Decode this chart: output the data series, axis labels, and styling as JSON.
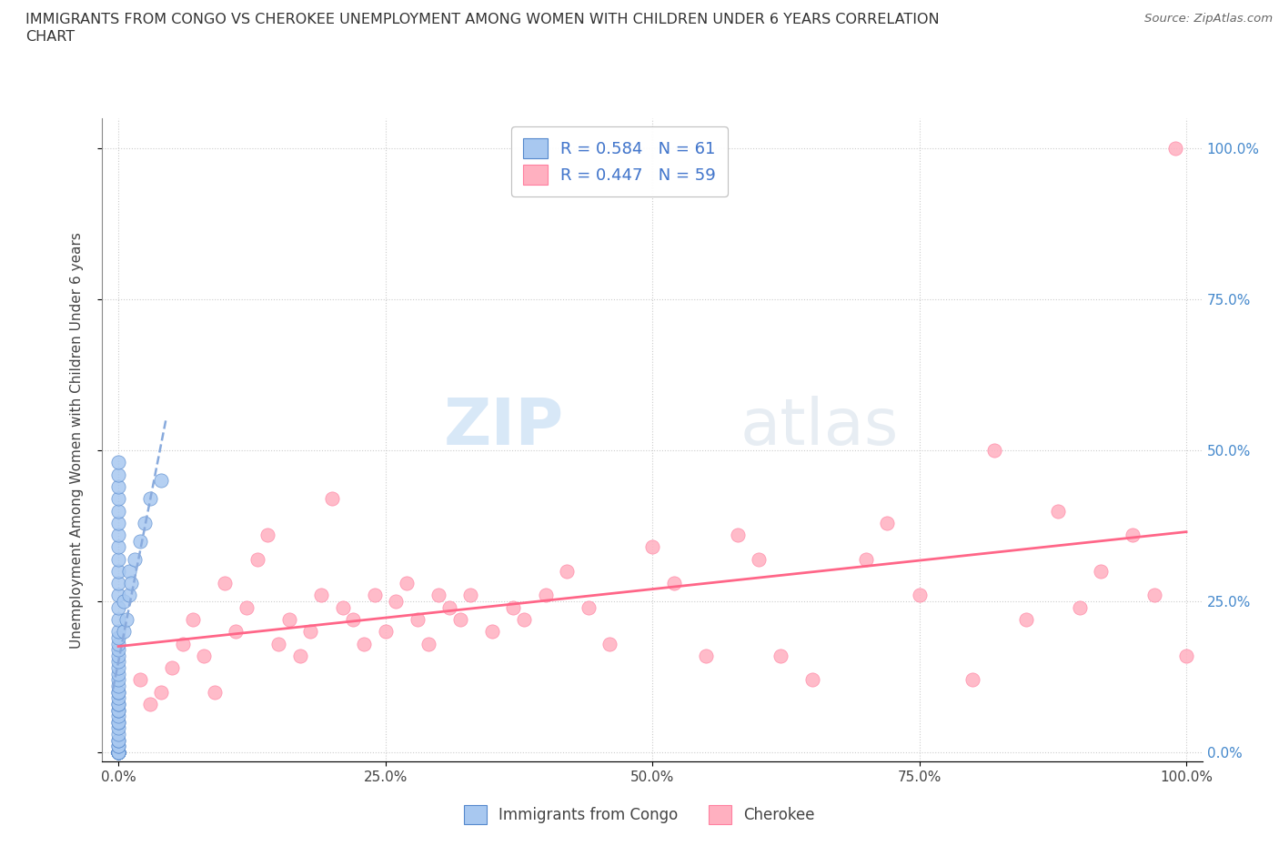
{
  "title_line1": "IMMIGRANTS FROM CONGO VS CHEROKEE UNEMPLOYMENT AMONG WOMEN WITH CHILDREN UNDER 6 YEARS CORRELATION",
  "title_line2": "CHART",
  "source": "Source: ZipAtlas.com",
  "ylabel": "Unemployment Among Women with Children Under 6 years",
  "color_blue_fill": "#A8C8F0",
  "color_blue_edge": "#5588CC",
  "color_blue_line": "#88AADD",
  "color_pink_fill": "#FFB0C0",
  "color_pink_edge": "#FF80A0",
  "color_pink_line": "#FF6688",
  "color_tick_right": "#4488CC",
  "watermark_zip": "ZIP",
  "watermark_atlas": "atlas",
  "background_color": "#FFFFFF",
  "grid_color": "#CCCCCC",
  "blue_x": [
    0.0,
    0.0,
    0.0,
    0.0,
    0.0,
    0.0,
    0.0,
    0.0,
    0.0,
    0.0,
    0.0,
    0.0,
    0.0,
    0.0,
    0.0,
    0.0,
    0.0,
    0.0,
    0.0,
    0.0,
    0.0,
    0.0,
    0.0,
    0.0,
    0.0,
    0.0,
    0.0,
    0.0,
    0.0,
    0.0,
    0.0,
    0.0,
    0.0,
    0.0,
    0.0,
    0.0,
    0.0,
    0.0,
    0.0,
    0.0,
    0.0,
    0.0,
    0.0,
    0.0,
    0.0,
    0.0,
    0.0,
    0.0,
    0.0,
    0.0,
    0.005,
    0.005,
    0.008,
    0.01,
    0.01,
    0.012,
    0.015,
    0.02,
    0.025,
    0.03,
    0.04
  ],
  "blue_y": [
    0.0,
    0.0,
    0.0,
    0.0,
    0.0,
    0.0,
    0.0,
    0.0,
    0.0,
    0.0,
    0.01,
    0.01,
    0.02,
    0.02,
    0.03,
    0.04,
    0.05,
    0.05,
    0.06,
    0.07,
    0.07,
    0.08,
    0.08,
    0.09,
    0.1,
    0.1,
    0.11,
    0.12,
    0.13,
    0.14,
    0.15,
    0.16,
    0.17,
    0.18,
    0.19,
    0.2,
    0.22,
    0.24,
    0.26,
    0.28,
    0.3,
    0.32,
    0.34,
    0.36,
    0.38,
    0.4,
    0.42,
    0.44,
    0.46,
    0.48,
    0.2,
    0.25,
    0.22,
    0.26,
    0.3,
    0.28,
    0.32,
    0.35,
    0.38,
    0.42,
    0.45
  ],
  "pink_x": [
    0.02,
    0.03,
    0.04,
    0.05,
    0.06,
    0.07,
    0.08,
    0.09,
    0.1,
    0.11,
    0.12,
    0.13,
    0.14,
    0.15,
    0.16,
    0.17,
    0.18,
    0.19,
    0.2,
    0.21,
    0.22,
    0.23,
    0.24,
    0.25,
    0.26,
    0.27,
    0.28,
    0.29,
    0.3,
    0.31,
    0.32,
    0.33,
    0.35,
    0.37,
    0.38,
    0.4,
    0.42,
    0.44,
    0.46,
    0.5,
    0.52,
    0.55,
    0.58,
    0.6,
    0.62,
    0.65,
    0.7,
    0.72,
    0.75,
    0.8,
    0.82,
    0.85,
    0.88,
    0.9,
    0.92,
    0.95,
    0.97,
    1.0,
    0.99
  ],
  "pink_y": [
    0.12,
    0.08,
    0.1,
    0.14,
    0.18,
    0.22,
    0.16,
    0.1,
    0.28,
    0.2,
    0.24,
    0.32,
    0.36,
    0.18,
    0.22,
    0.16,
    0.2,
    0.26,
    0.42,
    0.24,
    0.22,
    0.18,
    0.26,
    0.2,
    0.25,
    0.28,
    0.22,
    0.18,
    0.26,
    0.24,
    0.22,
    0.26,
    0.2,
    0.24,
    0.22,
    0.26,
    0.3,
    0.24,
    0.18,
    0.34,
    0.28,
    0.16,
    0.36,
    0.32,
    0.16,
    0.12,
    0.32,
    0.38,
    0.26,
    0.12,
    0.5,
    0.22,
    0.4,
    0.24,
    0.3,
    0.36,
    0.26,
    0.16,
    1.0
  ]
}
